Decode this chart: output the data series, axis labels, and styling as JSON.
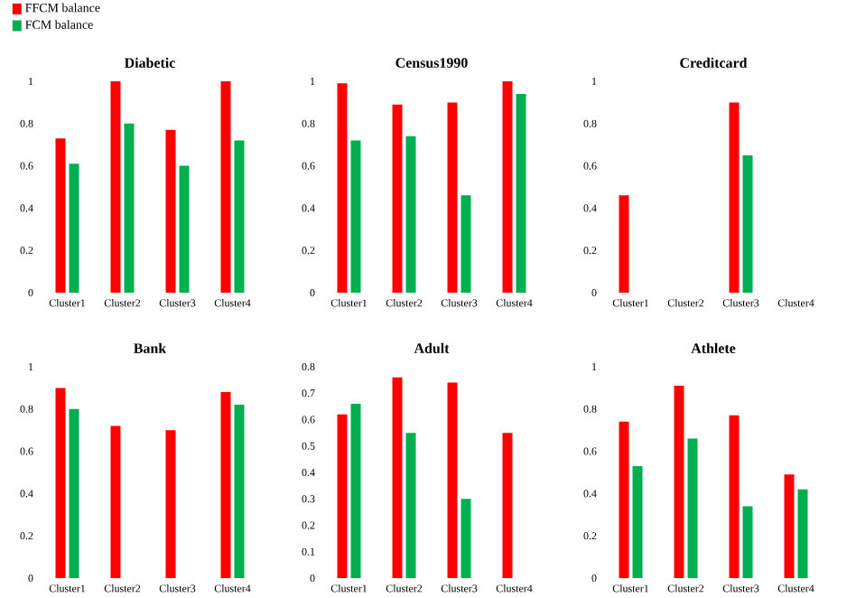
{
  "chart_data": [
    {
      "type": "bar",
      "title": "Diabetic",
      "categories": [
        "Cluster1",
        "Cluster2",
        "Cluster3",
        "Cluster4"
      ],
      "ylim": [
        0,
        1
      ],
      "yticks": [
        0,
        0.2,
        0.4,
        0.6,
        0.8,
        1
      ],
      "legend": "top left",
      "series": [
        {
          "name": "FFCM balance",
          "color": "#ff0000",
          "values": [
            0.73,
            1.0,
            0.77,
            1.0
          ]
        },
        {
          "name": "FCM balance",
          "color": "#00b050",
          "values": [
            0.61,
            0.8,
            0.6,
            0.72
          ]
        }
      ]
    },
    {
      "type": "bar",
      "title": "Census1990",
      "categories": [
        "Cluster1",
        "Cluster2",
        "Cluster3",
        "Cluster4"
      ],
      "ylim": [
        0,
        1
      ],
      "yticks": [
        0,
        0.2,
        0.4,
        0.6,
        0.8,
        1
      ],
      "series": [
        {
          "color": "#ff0000",
          "values": [
            0.99,
            0.89,
            0.9,
            1.0
          ]
        },
        {
          "color": "#00b050",
          "values": [
            0.72,
            0.74,
            0.46,
            0.94
          ]
        }
      ]
    },
    {
      "type": "bar",
      "title": "Creditcard",
      "categories": [
        "Cluster1",
        "Cluster2",
        "Cluster3",
        "Cluster4"
      ],
      "ylim": [
        0,
        1
      ],
      "yticks": [
        0,
        0.2,
        0.4,
        0.6,
        0.8,
        1
      ],
      "series": [
        {
          "color": "#ff0000",
          "values": [
            0.46,
            null,
            0.9,
            null
          ]
        },
        {
          "color": "#00b050",
          "values": [
            null,
            null,
            0.65,
            null
          ]
        }
      ]
    },
    {
      "type": "bar",
      "title": "Bank",
      "categories": [
        "Cluster1",
        "Cluster2",
        "Cluster3",
        "Cluster4"
      ],
      "ylim": [
        0,
        1
      ],
      "yticks": [
        0,
        0.2,
        0.4,
        0.6,
        0.8,
        1
      ],
      "series": [
        {
          "color": "#ff0000",
          "values": [
            0.9,
            0.72,
            0.7,
            0.88
          ]
        },
        {
          "color": "#00b050",
          "values": [
            0.8,
            null,
            null,
            0.82
          ]
        }
      ]
    },
    {
      "type": "bar",
      "title": "Adult",
      "categories": [
        "Cluster1",
        "Cluster2",
        "Cluster3",
        "Cluster4"
      ],
      "ylim": [
        0,
        0.8
      ],
      "yticks": [
        0,
        0.1,
        0.2,
        0.3,
        0.4,
        0.5,
        0.6,
        0.7,
        0.8
      ],
      "series": [
        {
          "color": "#ff0000",
          "values": [
            0.62,
            0.76,
            0.74,
            0.55
          ]
        },
        {
          "color": "#00b050",
          "values": [
            0.66,
            0.55,
            0.3,
            null
          ]
        }
      ]
    },
    {
      "type": "bar",
      "title": "Athlete",
      "categories": [
        "Cluster1",
        "Cluster2",
        "Cluster3",
        "Cluster4"
      ],
      "ylim": [
        0,
        1
      ],
      "yticks": [
        0,
        0.2,
        0.4,
        0.6,
        0.8,
        1
      ],
      "series": [
        {
          "color": "#ff0000",
          "values": [
            0.74,
            0.91,
            0.77,
            0.49
          ]
        },
        {
          "color": "#00b050",
          "values": [
            0.53,
            0.66,
            0.34,
            0.42
          ]
        }
      ]
    }
  ]
}
